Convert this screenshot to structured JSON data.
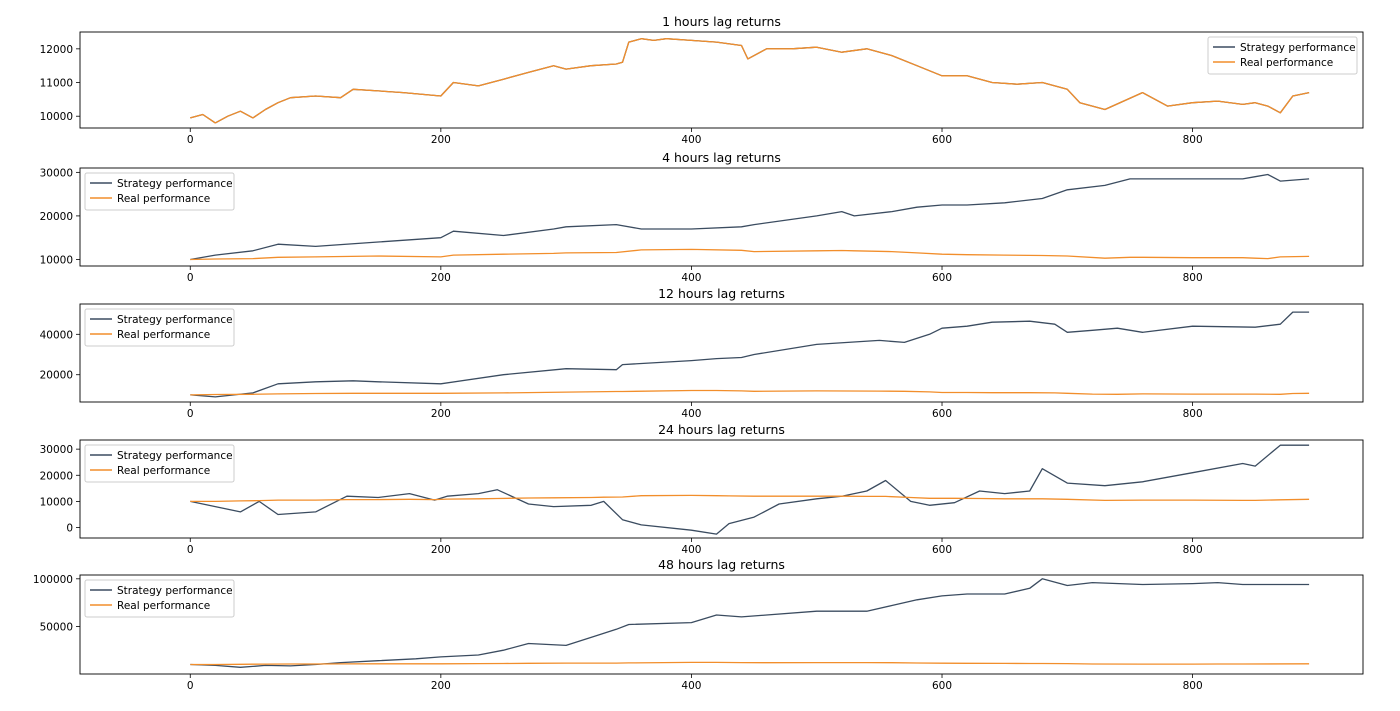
{
  "colors": {
    "strategy": "#3b4c60",
    "real": "#f28e2b",
    "axes": "#000000",
    "legend_border": "#cccccc"
  },
  "chart_data": [
    {
      "type": "line",
      "title": "1 hours lag returns",
      "xlabel": "",
      "ylabel": "",
      "xlim": [
        -88,
        936
      ],
      "ylim": [
        9650,
        12500
      ],
      "x_ticks": [
        0,
        200,
        400,
        600,
        800
      ],
      "y_ticks": [
        10000,
        11000,
        12000
      ],
      "legend_location": "upper right",
      "x": [
        0,
        10,
        20,
        30,
        40,
        50,
        60,
        70,
        80,
        100,
        120,
        130,
        150,
        170,
        200,
        210,
        230,
        250,
        270,
        290,
        300,
        320,
        340,
        345,
        350,
        360,
        370,
        380,
        400,
        420,
        440,
        445,
        460,
        480,
        500,
        520,
        540,
        560,
        580,
        600,
        620,
        640,
        660,
        680,
        700,
        710,
        720,
        730,
        760,
        780,
        800,
        820,
        840,
        850,
        860,
        870,
        880,
        893
      ],
      "series": [
        {
          "name": "Strategy performance",
          "values": [
            9950,
            10050,
            9800,
            10000,
            10150,
            9950,
            10200,
            10400,
            10550,
            10600,
            10550,
            10800,
            10750,
            10700,
            10600,
            11000,
            10900,
            11100,
            11300,
            11500,
            11400,
            11500,
            11550,
            11600,
            12200,
            12300,
            12250,
            12300,
            12250,
            12200,
            12100,
            11700,
            12000,
            12000,
            12050,
            11900,
            12000,
            11800,
            11500,
            11200,
            11200,
            11000,
            10950,
            11000,
            10800,
            10400,
            10300,
            10200,
            10700,
            10300,
            10400,
            10450,
            10350,
            10400,
            10300,
            10100,
            10600,
            10700
          ]
        },
        {
          "name": "Real performance",
          "values": [
            9950,
            10050,
            9800,
            10000,
            10150,
            9950,
            10200,
            10400,
            10550,
            10600,
            10550,
            10800,
            10750,
            10700,
            10600,
            11000,
            10900,
            11100,
            11300,
            11500,
            11400,
            11500,
            11550,
            11600,
            12200,
            12300,
            12250,
            12300,
            12250,
            12200,
            12100,
            11700,
            12000,
            12000,
            12050,
            11900,
            12000,
            11800,
            11500,
            11200,
            11200,
            11000,
            10950,
            11000,
            10800,
            10400,
            10300,
            10200,
            10700,
            10300,
            10400,
            10450,
            10350,
            10400,
            10300,
            10100,
            10600,
            10700
          ]
        }
      ]
    },
    {
      "type": "line",
      "title": "4 hours lag returns",
      "xlabel": "",
      "ylabel": "",
      "xlim": [
        -88,
        936
      ],
      "ylim": [
        8500,
        31000
      ],
      "x_ticks": [
        0,
        200,
        400,
        600,
        800
      ],
      "y_ticks": [
        10000,
        20000,
        30000
      ],
      "legend_location": "upper left",
      "x": [
        0,
        20,
        50,
        70,
        100,
        150,
        200,
        210,
        250,
        290,
        300,
        340,
        360,
        400,
        440,
        450,
        500,
        520,
        530,
        560,
        580,
        600,
        620,
        650,
        680,
        700,
        730,
        750,
        760,
        800,
        840,
        850,
        860,
        870,
        893
      ],
      "series": [
        {
          "name": "Strategy performance",
          "values": [
            10000,
            11000,
            12000,
            13500,
            13000,
            14000,
            15000,
            16500,
            15500,
            17000,
            17500,
            18000,
            17000,
            17000,
            17500,
            18000,
            20000,
            21000,
            20000,
            21000,
            22000,
            22500,
            22500,
            23000,
            24000,
            26000,
            27000,
            28500,
            28500,
            28500,
            28500,
            29000,
            29500,
            28000,
            28500
          ]
        },
        {
          "name": "Real performance",
          "values": [
            10000,
            10100,
            10200,
            10500,
            10600,
            10800,
            10600,
            11000,
            11200,
            11400,
            11500,
            11600,
            12200,
            12300,
            12100,
            11800,
            12000,
            12050,
            12000,
            11800,
            11500,
            11200,
            11100,
            11000,
            10900,
            10800,
            10300,
            10500,
            10500,
            10400,
            10400,
            10300,
            10200,
            10600,
            10700
          ]
        }
      ]
    },
    {
      "type": "line",
      "title": "12 hours lag returns",
      "xlabel": "",
      "ylabel": "",
      "xlim": [
        -88,
        936
      ],
      "ylim": [
        6500,
        55000
      ],
      "x_ticks": [
        0,
        200,
        400,
        600,
        800
      ],
      "y_ticks": [
        20000,
        40000
      ],
      "legend_location": "upper left",
      "x": [
        0,
        20,
        50,
        70,
        100,
        130,
        150,
        200,
        250,
        300,
        340,
        345,
        400,
        420,
        440,
        450,
        500,
        550,
        570,
        590,
        600,
        620,
        640,
        670,
        690,
        700,
        720,
        740,
        760,
        800,
        850,
        870,
        880,
        893
      ],
      "series": [
        {
          "name": "Strategy performance",
          "values": [
            10000,
            9000,
            11000,
            15500,
            16500,
            17000,
            16500,
            15500,
            20000,
            23000,
            22500,
            25000,
            27000,
            28000,
            28500,
            30000,
            35000,
            37000,
            36000,
            40000,
            43000,
            44000,
            46000,
            46500,
            45000,
            41000,
            42000,
            43000,
            41000,
            44000,
            43500,
            45000,
            51000,
            51000
          ]
        },
        {
          "name": "Real performance",
          "values": [
            10000,
            10200,
            10300,
            10500,
            10700,
            10800,
            10800,
            10800,
            11000,
            11400,
            11700,
            11700,
            12200,
            12200,
            12000,
            11800,
            12000,
            11900,
            11800,
            11500,
            11200,
            11200,
            11100,
            11100,
            11000,
            10800,
            10400,
            10300,
            10500,
            10400,
            10400,
            10300,
            10700,
            10800
          ]
        }
      ]
    },
    {
      "type": "line",
      "title": "24 hours lag returns",
      "xlabel": "",
      "ylabel": "",
      "xlim": [
        -88,
        936
      ],
      "ylim": [
        -4000,
        33500
      ],
      "x_ticks": [
        0,
        200,
        400,
        600,
        800
      ],
      "y_ticks": [
        0,
        10000,
        20000,
        30000
      ],
      "legend_location": "upper left",
      "x": [
        0,
        20,
        40,
        55,
        70,
        100,
        125,
        150,
        175,
        195,
        205,
        230,
        245,
        270,
        290,
        320,
        330,
        345,
        360,
        400,
        420,
        430,
        450,
        470,
        500,
        520,
        540,
        555,
        575,
        590,
        610,
        630,
        650,
        670,
        680,
        700,
        730,
        760,
        800,
        840,
        850,
        870,
        893
      ],
      "series": [
        {
          "name": "Strategy performance",
          "values": [
            10000,
            8000,
            6000,
            10000,
            5000,
            6000,
            12000,
            11500,
            13000,
            10500,
            12000,
            13000,
            14500,
            9000,
            8000,
            8500,
            10000,
            3000,
            1000,
            -1000,
            -2500,
            1500,
            4000,
            9000,
            11000,
            12000,
            14000,
            18000,
            10000,
            8500,
            9500,
            14000,
            13000,
            14000,
            22500,
            17000,
            16000,
            17500,
            21000,
            24500,
            23500,
            31500,
            31500
          ]
        },
        {
          "name": "Real performance",
          "values": [
            10000,
            10000,
            10200,
            10300,
            10500,
            10500,
            10700,
            10700,
            10800,
            10700,
            10900,
            11000,
            11100,
            11300,
            11400,
            11500,
            11600,
            11700,
            12200,
            12300,
            12200,
            12100,
            12000,
            12000,
            12000,
            12000,
            11900,
            11900,
            11500,
            11200,
            11200,
            11100,
            11000,
            11000,
            11000,
            10800,
            10400,
            10500,
            10500,
            10400,
            10400,
            10600,
            10800
          ]
        }
      ]
    },
    {
      "type": "line",
      "title": "48 hours lag returns",
      "xlabel": "",
      "ylabel": "",
      "xlim": [
        -88,
        936
      ],
      "ylim": [
        0,
        104000
      ],
      "x_ticks": [
        0,
        200,
        400,
        600,
        800
      ],
      "y_ticks": [
        50000,
        100000
      ],
      "legend_location": "upper left",
      "x": [
        0,
        20,
        40,
        50,
        60,
        80,
        100,
        120,
        150,
        180,
        200,
        230,
        250,
        270,
        300,
        340,
        350,
        400,
        420,
        440,
        460,
        500,
        520,
        540,
        560,
        580,
        600,
        620,
        650,
        670,
        680,
        700,
        720,
        760,
        800,
        820,
        840,
        893
      ],
      "series": [
        {
          "name": "Strategy performance",
          "values": [
            10000,
            9000,
            7000,
            8000,
            9000,
            8500,
            10000,
            12000,
            14000,
            16000,
            18000,
            20000,
            25000,
            32000,
            30000,
            47000,
            52000,
            54000,
            62000,
            60000,
            62000,
            66000,
            66000,
            66000,
            72000,
            78000,
            82000,
            84000,
            84000,
            90000,
            100000,
            93000,
            96000,
            94000,
            95000,
            96000,
            94000,
            94000
          ]
        },
        {
          "name": "Real performance",
          "values": [
            10000,
            10000,
            10200,
            10300,
            10400,
            10500,
            10500,
            10600,
            10700,
            10700,
            10700,
            10900,
            11000,
            11200,
            11400,
            11500,
            11700,
            12200,
            12200,
            12000,
            11900,
            12000,
            12000,
            12000,
            11900,
            11600,
            11300,
            11200,
            11100,
            11000,
            11000,
            10900,
            10500,
            10400,
            10400,
            10500,
            10500,
            10700
          ]
        }
      ]
    }
  ]
}
